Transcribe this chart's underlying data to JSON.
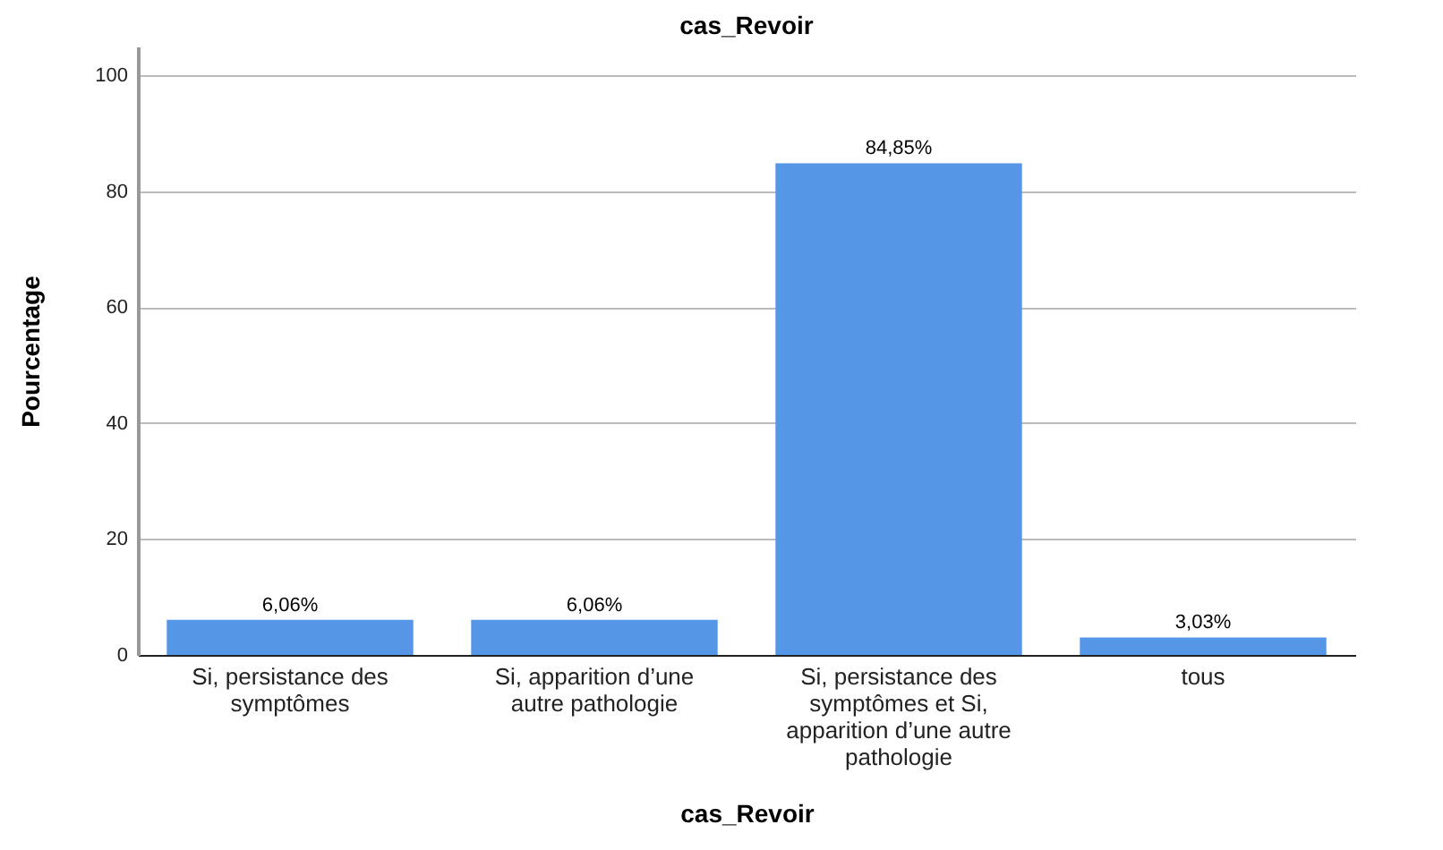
{
  "chart_data": {
    "type": "bar",
    "title": "cas_Revoir",
    "xlabel": "cas_Revoir",
    "ylabel": "Pourcentage",
    "categories": [
      "Si, persistance des symptômes",
      "Si, apparition d’une autre pathologie",
      "Si, persistance des symptômes et Si, apparition d’une autre pathologie",
      "tous"
    ],
    "values": [
      6.06,
      6.06,
      84.85,
      3.03
    ],
    "value_labels": [
      "6,06%",
      "6,06%",
      "84,85%",
      "3,03%"
    ],
    "color": "#5596e6",
    "ylim": [
      0,
      105
    ],
    "yticks": [
      0,
      20,
      40,
      60,
      80,
      100
    ],
    "grid": "y"
  }
}
